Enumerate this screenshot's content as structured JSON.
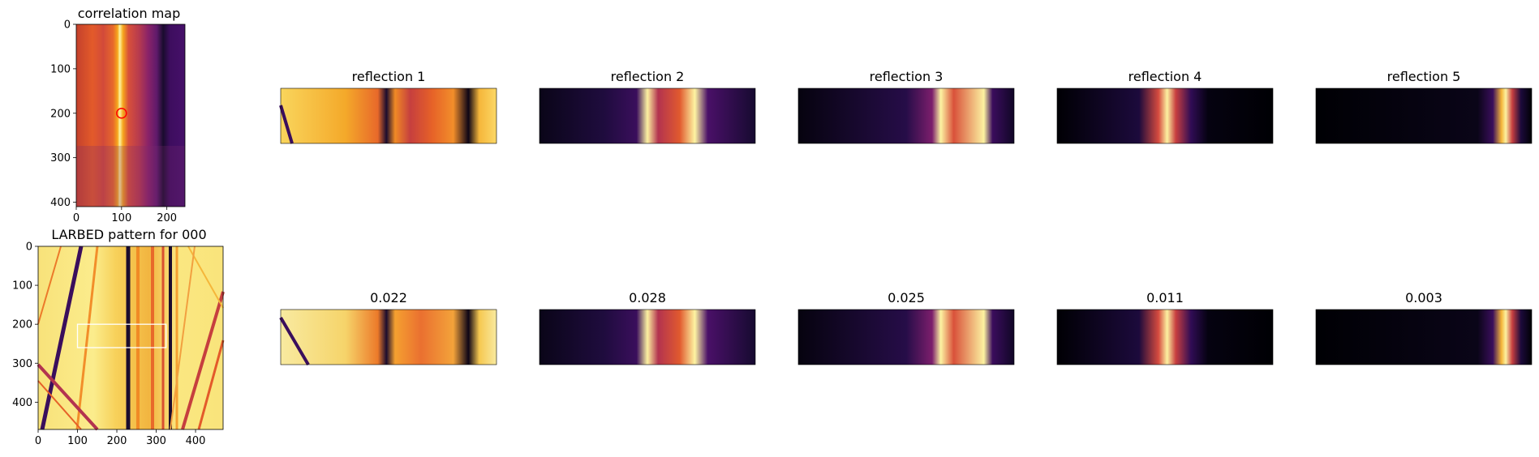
{
  "chart_data": [
    {
      "type": "heatmap",
      "title": "correlation map",
      "colormap": "inferno",
      "xticks": [
        0,
        100,
        200
      ],
      "yticks": [
        0,
        100,
        200,
        300,
        400
      ],
      "xlim": [
        0,
        240
      ],
      "ylim": [
        410,
        0
      ],
      "marker": {
        "shape": "circle",
        "x": 100,
        "y": 200,
        "color": "#ff0000"
      }
    },
    {
      "type": "heatmap",
      "title": "LARBED pattern for 000",
      "colormap": "inferno",
      "xticks": [
        0,
        100,
        200,
        300,
        400
      ],
      "yticks": [
        0,
        100,
        200,
        300,
        400
      ],
      "xlim": [
        0,
        470
      ],
      "ylim": [
        470,
        0
      ],
      "roi": {
        "x0": 100,
        "y0": 200,
        "x1": 325,
        "y1": 260,
        "color": "#ffffff"
      }
    },
    {
      "type": "heatmap",
      "rows": [
        {
          "titles": [
            "reflection 1",
            "reflection 2",
            "reflection 3",
            "reflection 4",
            "reflection 5"
          ]
        },
        {
          "titles": [
            "0.022",
            "0.028",
            "0.025",
            "0.011",
            "0.003"
          ]
        }
      ]
    }
  ]
}
